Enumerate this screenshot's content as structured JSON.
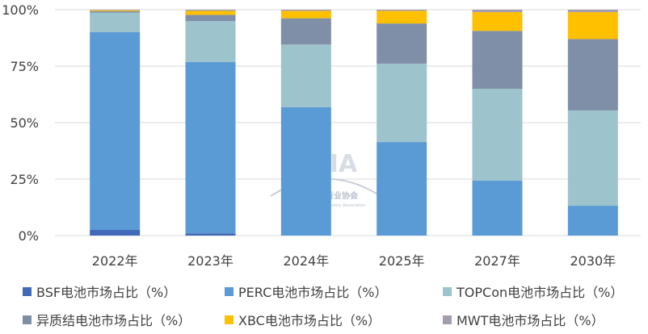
{
  "chart_data": {
    "type": "bar",
    "stacked": true,
    "title": "",
    "xlabel": "",
    "ylabel": "",
    "ylim": [
      0,
      100
    ],
    "yticks": [
      "0%",
      "25%",
      "50%",
      "75%",
      "100%"
    ],
    "grid": true,
    "legend_position": "bottom",
    "categories": [
      "2022年",
      "2023年",
      "2024年",
      "2025年",
      "2027年",
      "2030年"
    ],
    "series": [
      {
        "name": "BSF电池市场占比（%）",
        "color": "#4169b8",
        "values": [
          2.5,
          1.0,
          0,
          0,
          0,
          0
        ]
      },
      {
        "name": "PERC电池市场占比（%）",
        "color": "#5b9bd5",
        "values": [
          87.5,
          75.8,
          56.8,
          41.4,
          24.3,
          13.2
        ]
      },
      {
        "name": "TOPCon电池市场占比（%）",
        "color": "#9dc3cc",
        "values": [
          8.7,
          18.2,
          27.8,
          34.7,
          40.7,
          42.2
        ]
      },
      {
        "name": "异质结电池市场占比（%）",
        "color": "#7f8fa8",
        "values": [
          0.6,
          2.7,
          11.6,
          17.8,
          25.6,
          31.6
        ]
      },
      {
        "name": "XBC电池市场占比（%）",
        "color": "#ffc000",
        "values": [
          0.4,
          1.8,
          3.3,
          5.6,
          8.3,
          11.9
        ]
      },
      {
        "name": "MWT电池市场占比（%）",
        "color": "#a59cac",
        "values": [
          0.3,
          0.5,
          0.5,
          0.5,
          1.1,
          1.1
        ]
      }
    ]
  },
  "watermark": {
    "logo": "CPIA",
    "cn": "中国光伏行业协会",
    "en": "China Photovoltaic Industry Association"
  }
}
